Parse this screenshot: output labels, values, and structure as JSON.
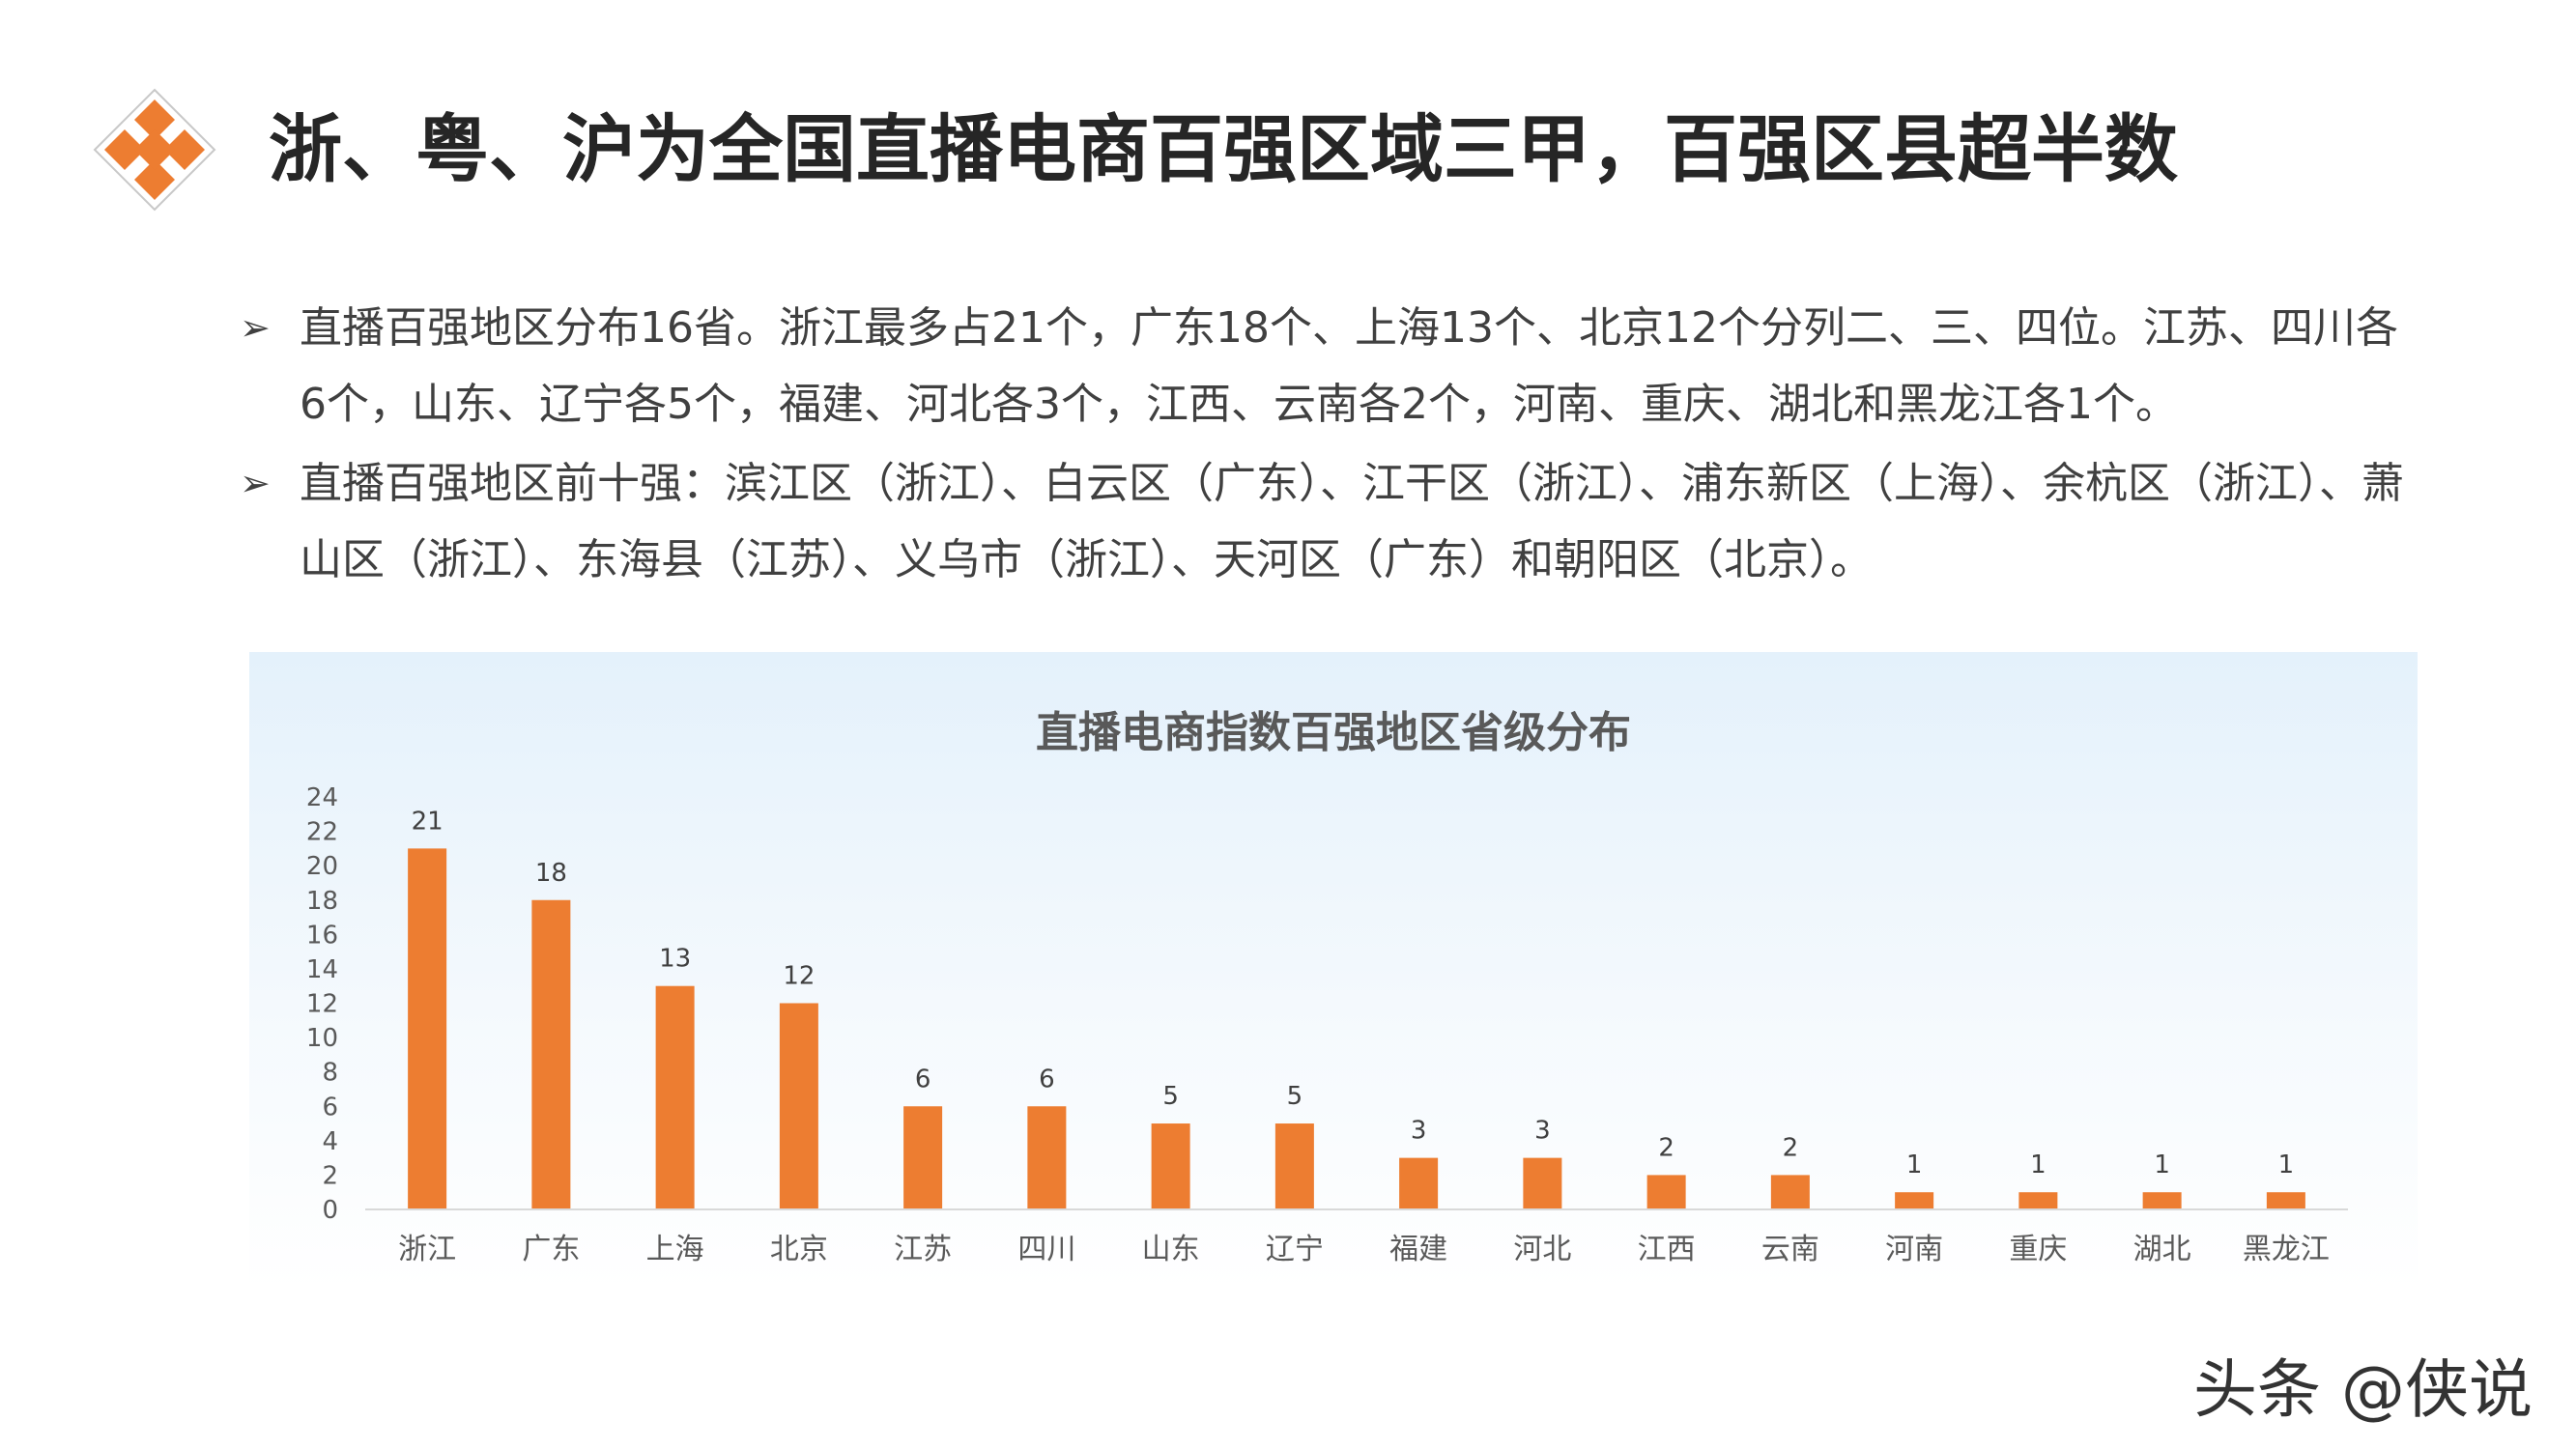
{
  "page": {
    "title": "浙、粤、沪为全国直播电商百强区域三甲，百强区县超半数",
    "logo_icon": "orange-diamond-grid-icon",
    "accent_color": "#ED7D31",
    "bullet_icon": "arrow-bullet-icon",
    "bullets": [
      "直播百强地区分布16省。浙江最多占21个，广东18个、上海13个、北京12个分列二、三、四位。江苏、四川各6个，山东、辽宁各5个，福建、河北各3个，江西、云南各2个，河南、重庆、湖北和黑龙江各1个。",
      "直播百强地区前十强：滨江区（浙江）、白云区（广东）、江干区（浙江）、浦东新区（上海）、余杭区（浙江）、萧山区（浙江）、东海县（江苏）、义乌市（浙江）、天河区（广东）和朝阳区（北京）。"
    ],
    "watermark": "头条 @侠说"
  },
  "chart_data": {
    "type": "bar",
    "title": "直播电商指数百强地区省级分布",
    "categories": [
      "浙江",
      "广东",
      "上海",
      "北京",
      "江苏",
      "四川",
      "山东",
      "辽宁",
      "福建",
      "河北",
      "江西",
      "云南",
      "河南",
      "重庆",
      "湖北",
      "黑龙江"
    ],
    "values": [
      21,
      18,
      13,
      12,
      6,
      6,
      5,
      5,
      3,
      3,
      2,
      2,
      1,
      1,
      1,
      1
    ],
    "ylim": [
      0,
      24
    ],
    "yticks": [
      0,
      2,
      4,
      6,
      8,
      10,
      12,
      14,
      16,
      18,
      20,
      22,
      24
    ],
    "data_labels": true,
    "gridlines": false,
    "legend": "none",
    "bar_color": "#ED7D31"
  }
}
